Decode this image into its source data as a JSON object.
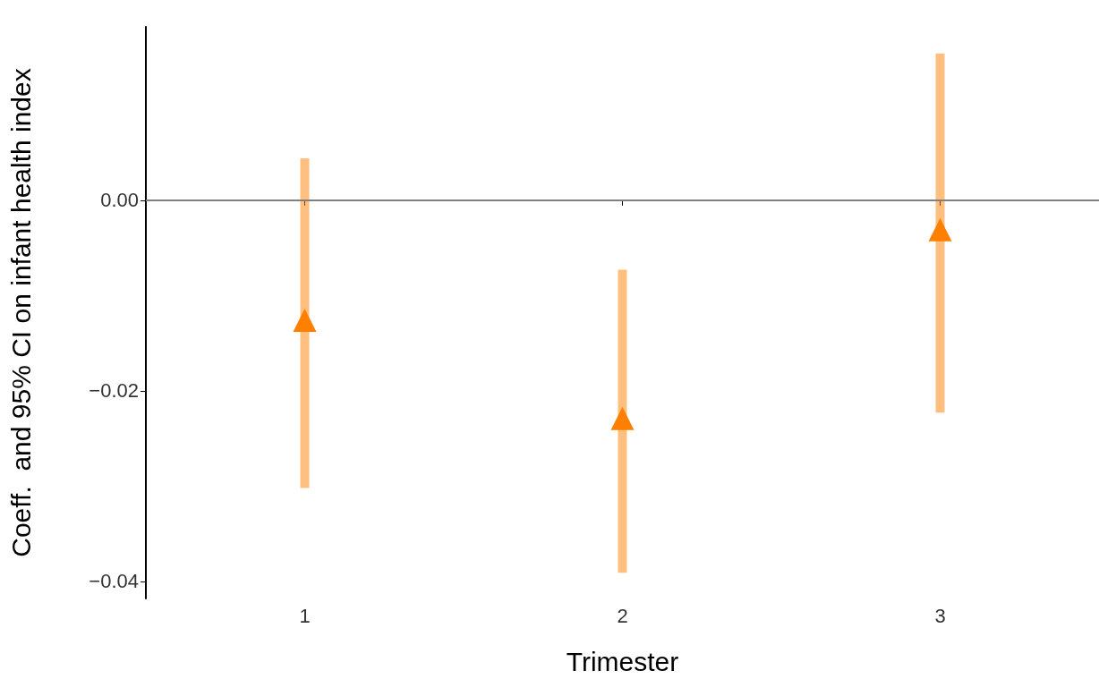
{
  "chart_data": {
    "type": "scatter",
    "xlabel": "Trimester",
    "ylabel": "Coeff.  and 95% CI on infant health index",
    "categories": [
      "1",
      "2",
      "3"
    ],
    "series": [
      {
        "color": "#ff8000",
        "values": [
          -0.0126,
          -0.0229,
          -0.0031
        ],
        "errors": [
          [
            -0.0302,
            0.0044
          ],
          [
            -0.0391,
            -0.0073
          ],
          [
            -0.0223,
            0.0154
          ]
        ]
      }
    ],
    "ylim": [
      -0.0418,
      0.0182
    ],
    "yticks": [
      {
        "value": -0.04,
        "label": "−0.04"
      },
      {
        "value": -0.02,
        "label": "−0.02"
      },
      {
        "value": 0,
        "label": "0.00"
      }
    ],
    "ref_lines": [
      {
        "axis": "y",
        "value": 0,
        "color": "#808080"
      }
    ],
    "marker": "triangle",
    "grid": false
  }
}
